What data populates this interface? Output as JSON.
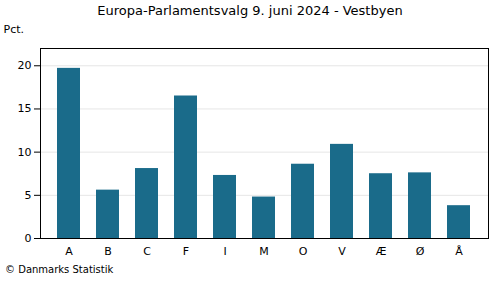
{
  "chart_data": {
    "type": "bar",
    "title": "Europa-Parlamentsvalg 9. juni 2024 - Vestbyen",
    "ylabel": "Pct.",
    "footer": "© Danmarks Statistik",
    "categories": [
      "A",
      "B",
      "C",
      "F",
      "I",
      "M",
      "O",
      "V",
      "Æ",
      "Ø",
      "Å"
    ],
    "values": [
      19.7,
      5.6,
      8.1,
      16.5,
      7.3,
      4.8,
      8.6,
      10.9,
      7.5,
      7.6,
      3.8
    ],
    "color": "#1a6b8a",
    "ylim": [
      0,
      22
    ],
    "yticks": [
      0,
      5,
      10,
      15,
      20
    ],
    "grid": true
  }
}
